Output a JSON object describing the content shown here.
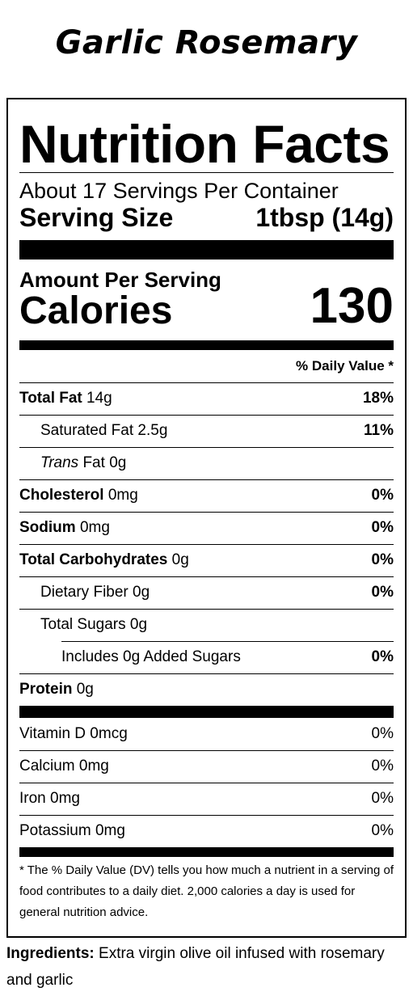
{
  "product": {
    "name": "Garlic Rosemary"
  },
  "label": {
    "title": "Nutrition Facts",
    "servings_per_container": "About 17 Servings Per Container",
    "serving_size_label": "Serving Size",
    "serving_size_value": "1tbsp (14g)",
    "amount_per_serving": "Amount Per Serving",
    "calories_label": "Calories",
    "calories_value": "130",
    "daily_value_header": "% Daily Value *",
    "nutrients": [
      {
        "name": "Total Fat",
        "amount": "14g",
        "dv": "18%"
      },
      {
        "name": "Saturated Fat",
        "amount": "2.5g",
        "dv": "11%"
      },
      {
        "name": "Trans",
        "name_suffix": "Fat",
        "amount": "0g",
        "dv": ""
      },
      {
        "name": "Cholesterol",
        "amount": "0mg",
        "dv": "0%"
      },
      {
        "name": "Sodium",
        "amount": "0mg",
        "dv": "0%"
      },
      {
        "name": "Total Carbohydrates",
        "amount": "0g",
        "dv": "0%"
      },
      {
        "name": "Dietary Fiber",
        "amount": "0g",
        "dv": "0%"
      },
      {
        "name": "Total Sugars",
        "amount": "0g",
        "dv": ""
      },
      {
        "name": "Includes 0g Added Sugars",
        "amount": "",
        "dv": "0%"
      },
      {
        "name": "Protein",
        "amount": "0g",
        "dv": ""
      }
    ],
    "vitamins": [
      {
        "name": "Vitamin D",
        "amount": "0mcg",
        "dv": "0%"
      },
      {
        "name": "Calcium",
        "amount": "0mg",
        "dv": "0%"
      },
      {
        "name": "Iron",
        "amount": "0mg",
        "dv": "0%"
      },
      {
        "name": "Potassium",
        "amount": "0mg",
        "dv": "0%"
      }
    ],
    "footnote": "* The % Daily Value (DV) tells you how much a nutrient in a serving of food contributes to a daily diet. 2,000 calories a day is used for general nutrition advice."
  },
  "ingredients": {
    "label": "Ingredients:",
    "text": "Extra virgin olive oil infused with rosemary and garlic"
  }
}
